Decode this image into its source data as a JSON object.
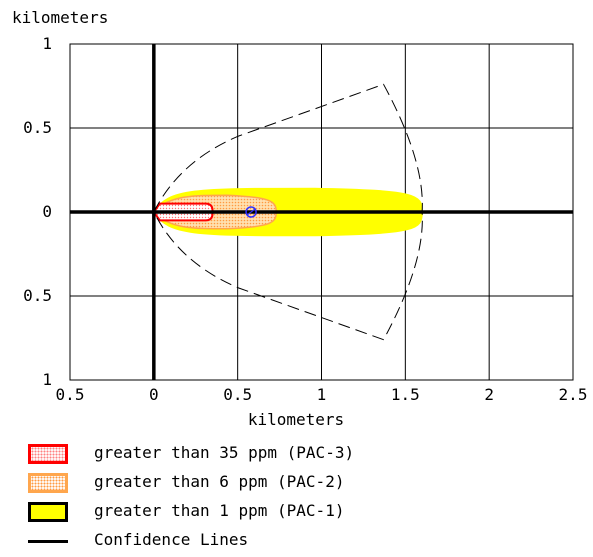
{
  "chart_data": {
    "type": "area",
    "title": "",
    "xlabel": "kilometers",
    "ylabel": "kilometers",
    "xlim": [
      -0.5,
      2.5
    ],
    "ylim": [
      -1,
      1
    ],
    "x_ticks": [
      -0.5,
      0,
      0.5,
      1,
      1.5,
      2,
      2.5
    ],
    "x_tick_labels": [
      "0.5",
      "0",
      "0.5",
      "1",
      "1.5",
      "2",
      "2.5"
    ],
    "y_ticks": [
      1,
      0.5,
      0,
      -0.5,
      -1
    ],
    "y_tick_labels": [
      "1",
      "0.5",
      "0",
      "0.5",
      "1"
    ],
    "grid": true,
    "legend_placement": "bottom-left",
    "source_marker": {
      "x": 0.58,
      "y": 0.0
    },
    "zones": [
      {
        "name": "greater than 35 ppm (PAC-3)",
        "color": "#ff0000",
        "max_downwind_km": 0.35,
        "half_width_km": 0.05
      },
      {
        "name": "greater than 6 ppm (PAC-2)",
        "color": "#ffa64d",
        "max_downwind_km": 0.73,
        "half_width_km": 0.1
      },
      {
        "name": "greater than 1 ppm (PAC-1)",
        "color": "#ffff00",
        "max_downwind_km": 1.6,
        "half_width_km": 0.14
      }
    ],
    "confidence_lines": [
      {
        "x": 0.0,
        "y": 0.0
      },
      {
        "x": 0.5,
        "y": 0.45
      },
      {
        "x": 1.37,
        "y": 0.76
      },
      {
        "x": 1.6,
        "y": 0.0
      },
      {
        "x": 1.37,
        "y": -0.76
      },
      {
        "x": 0.5,
        "y": -0.45
      },
      {
        "x": 0.0,
        "y": 0.0
      }
    ]
  },
  "legend": {
    "items": [
      {
        "label": "greater than 35 ppm (PAC-3)"
      },
      {
        "label": "greater than 6 ppm (PAC-2)"
      },
      {
        "label": "greater than 1 ppm (PAC-1)"
      },
      {
        "label": "Confidence Lines"
      }
    ]
  }
}
